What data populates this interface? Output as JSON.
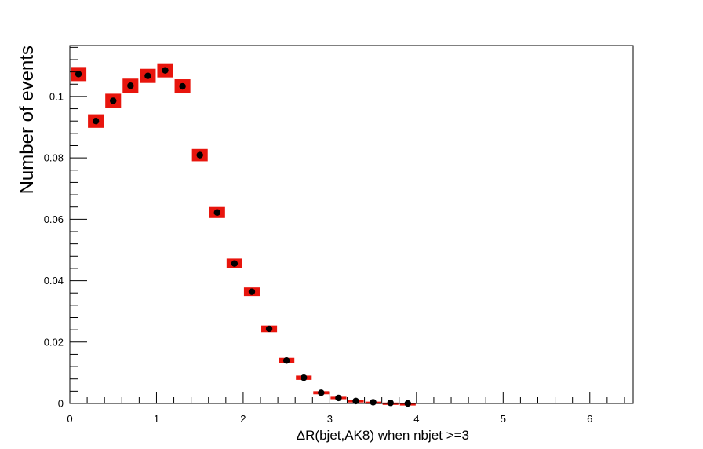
{
  "chart_data": {
    "type": "scatter",
    "title": "",
    "xlabel": "ΔR(bjet,AK8) when nbjet >=3",
    "ylabel": "Number of events",
    "xlim": [
      0,
      6.5
    ],
    "ylim": [
      0,
      0.1166
    ],
    "x_ticks": [
      "0",
      "1",
      "2",
      "3",
      "4",
      "5",
      "6"
    ],
    "y_ticks": [
      "0",
      "0.02",
      "0.04",
      "0.06",
      "0.08",
      "0.1"
    ],
    "grid": false,
    "legend": "none",
    "colors": {
      "marker": "#000000",
      "error_band": "#e8150d"
    },
    "series": [
      {
        "bin_width": 0.2,
        "x": [
          0.1,
          0.3,
          0.5,
          0.7,
          0.9,
          1.1,
          1.3,
          1.5,
          1.7,
          1.9,
          2.1,
          2.3,
          2.5,
          2.7,
          2.9,
          3.1,
          3.3,
          3.5,
          3.7,
          3.9
        ],
        "y": [
          0.1073,
          0.092,
          0.0986,
          0.1035,
          0.1067,
          0.1085,
          0.1033,
          0.0809,
          0.0622,
          0.0456,
          0.0364,
          0.0243,
          0.014,
          0.0084,
          0.0035,
          0.0018,
          0.0008,
          0.0004,
          0.0002,
          0.0
        ],
        "err": [
          0.0023,
          0.0022,
          0.0023,
          0.0023,
          0.0023,
          0.0023,
          0.0023,
          0.002,
          0.0018,
          0.0016,
          0.0014,
          0.0011,
          0.0009,
          0.0007,
          0.0005,
          0.0004,
          0.0003,
          0.0002,
          0.0001,
          0.0001
        ]
      }
    ]
  }
}
